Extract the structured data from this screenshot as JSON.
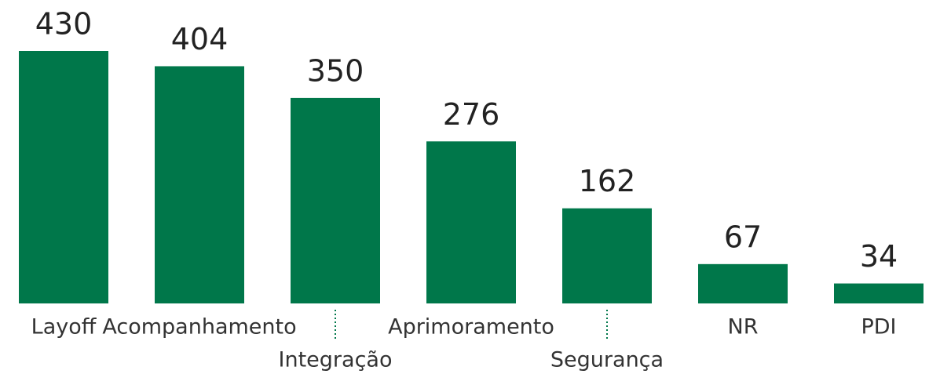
{
  "chart_data": {
    "type": "bar",
    "categories": [
      "Layoff",
      "Acompanhamento",
      "Integração",
      "Aprimoramento",
      "Segurança",
      "NR",
      "PDI"
    ],
    "values": [
      430,
      404,
      350,
      276,
      162,
      67,
      34
    ],
    "color": "#00774a"
  }
}
